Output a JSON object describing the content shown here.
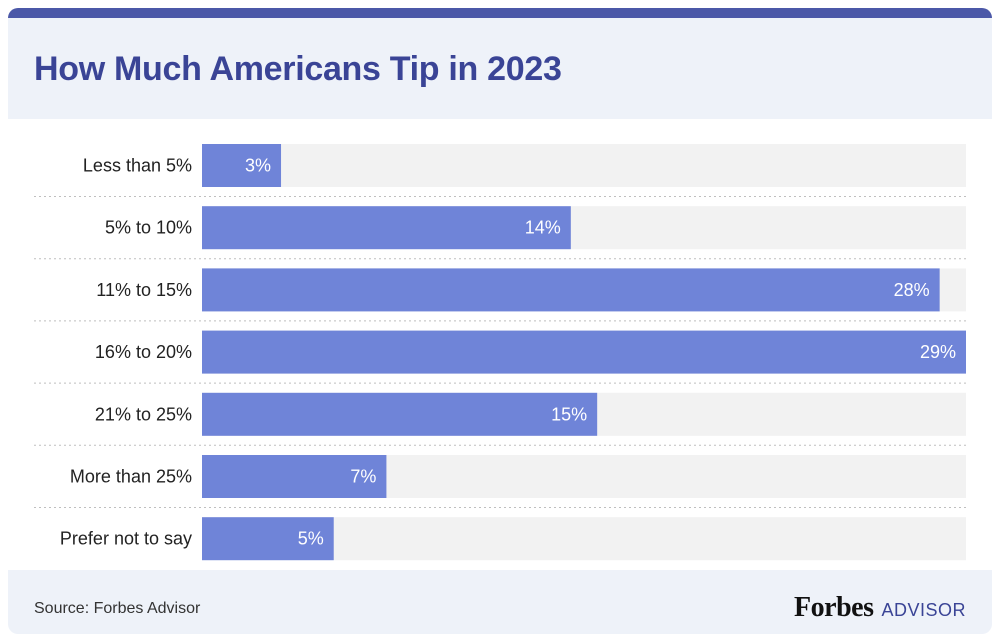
{
  "header": {
    "title": "How Much Americans Tip in 2023"
  },
  "footer": {
    "source": "Source: Forbes Advisor",
    "brand_name": "Forbes",
    "brand_sub": "ADVISOR"
  },
  "colors": {
    "bar": "#6f84d8",
    "track": "#f2f2f2",
    "accent": "#3a4496"
  },
  "chart_data": {
    "type": "bar",
    "orientation": "horizontal",
    "title": "How Much Americans Tip in 2023",
    "categories": [
      "Less than 5%",
      "5% to 10%",
      "11% to 15%",
      "16% to 20%",
      "21% to 25%",
      "More than 25%",
      "Prefer not to say"
    ],
    "values": [
      3,
      14,
      28,
      29,
      15,
      7,
      5
    ],
    "value_labels": [
      "3%",
      "14%",
      "28%",
      "29%",
      "15%",
      "7%",
      "5%"
    ],
    "unit": "%",
    "xlim": [
      0,
      29
    ],
    "grid": false,
    "legend": "none"
  }
}
